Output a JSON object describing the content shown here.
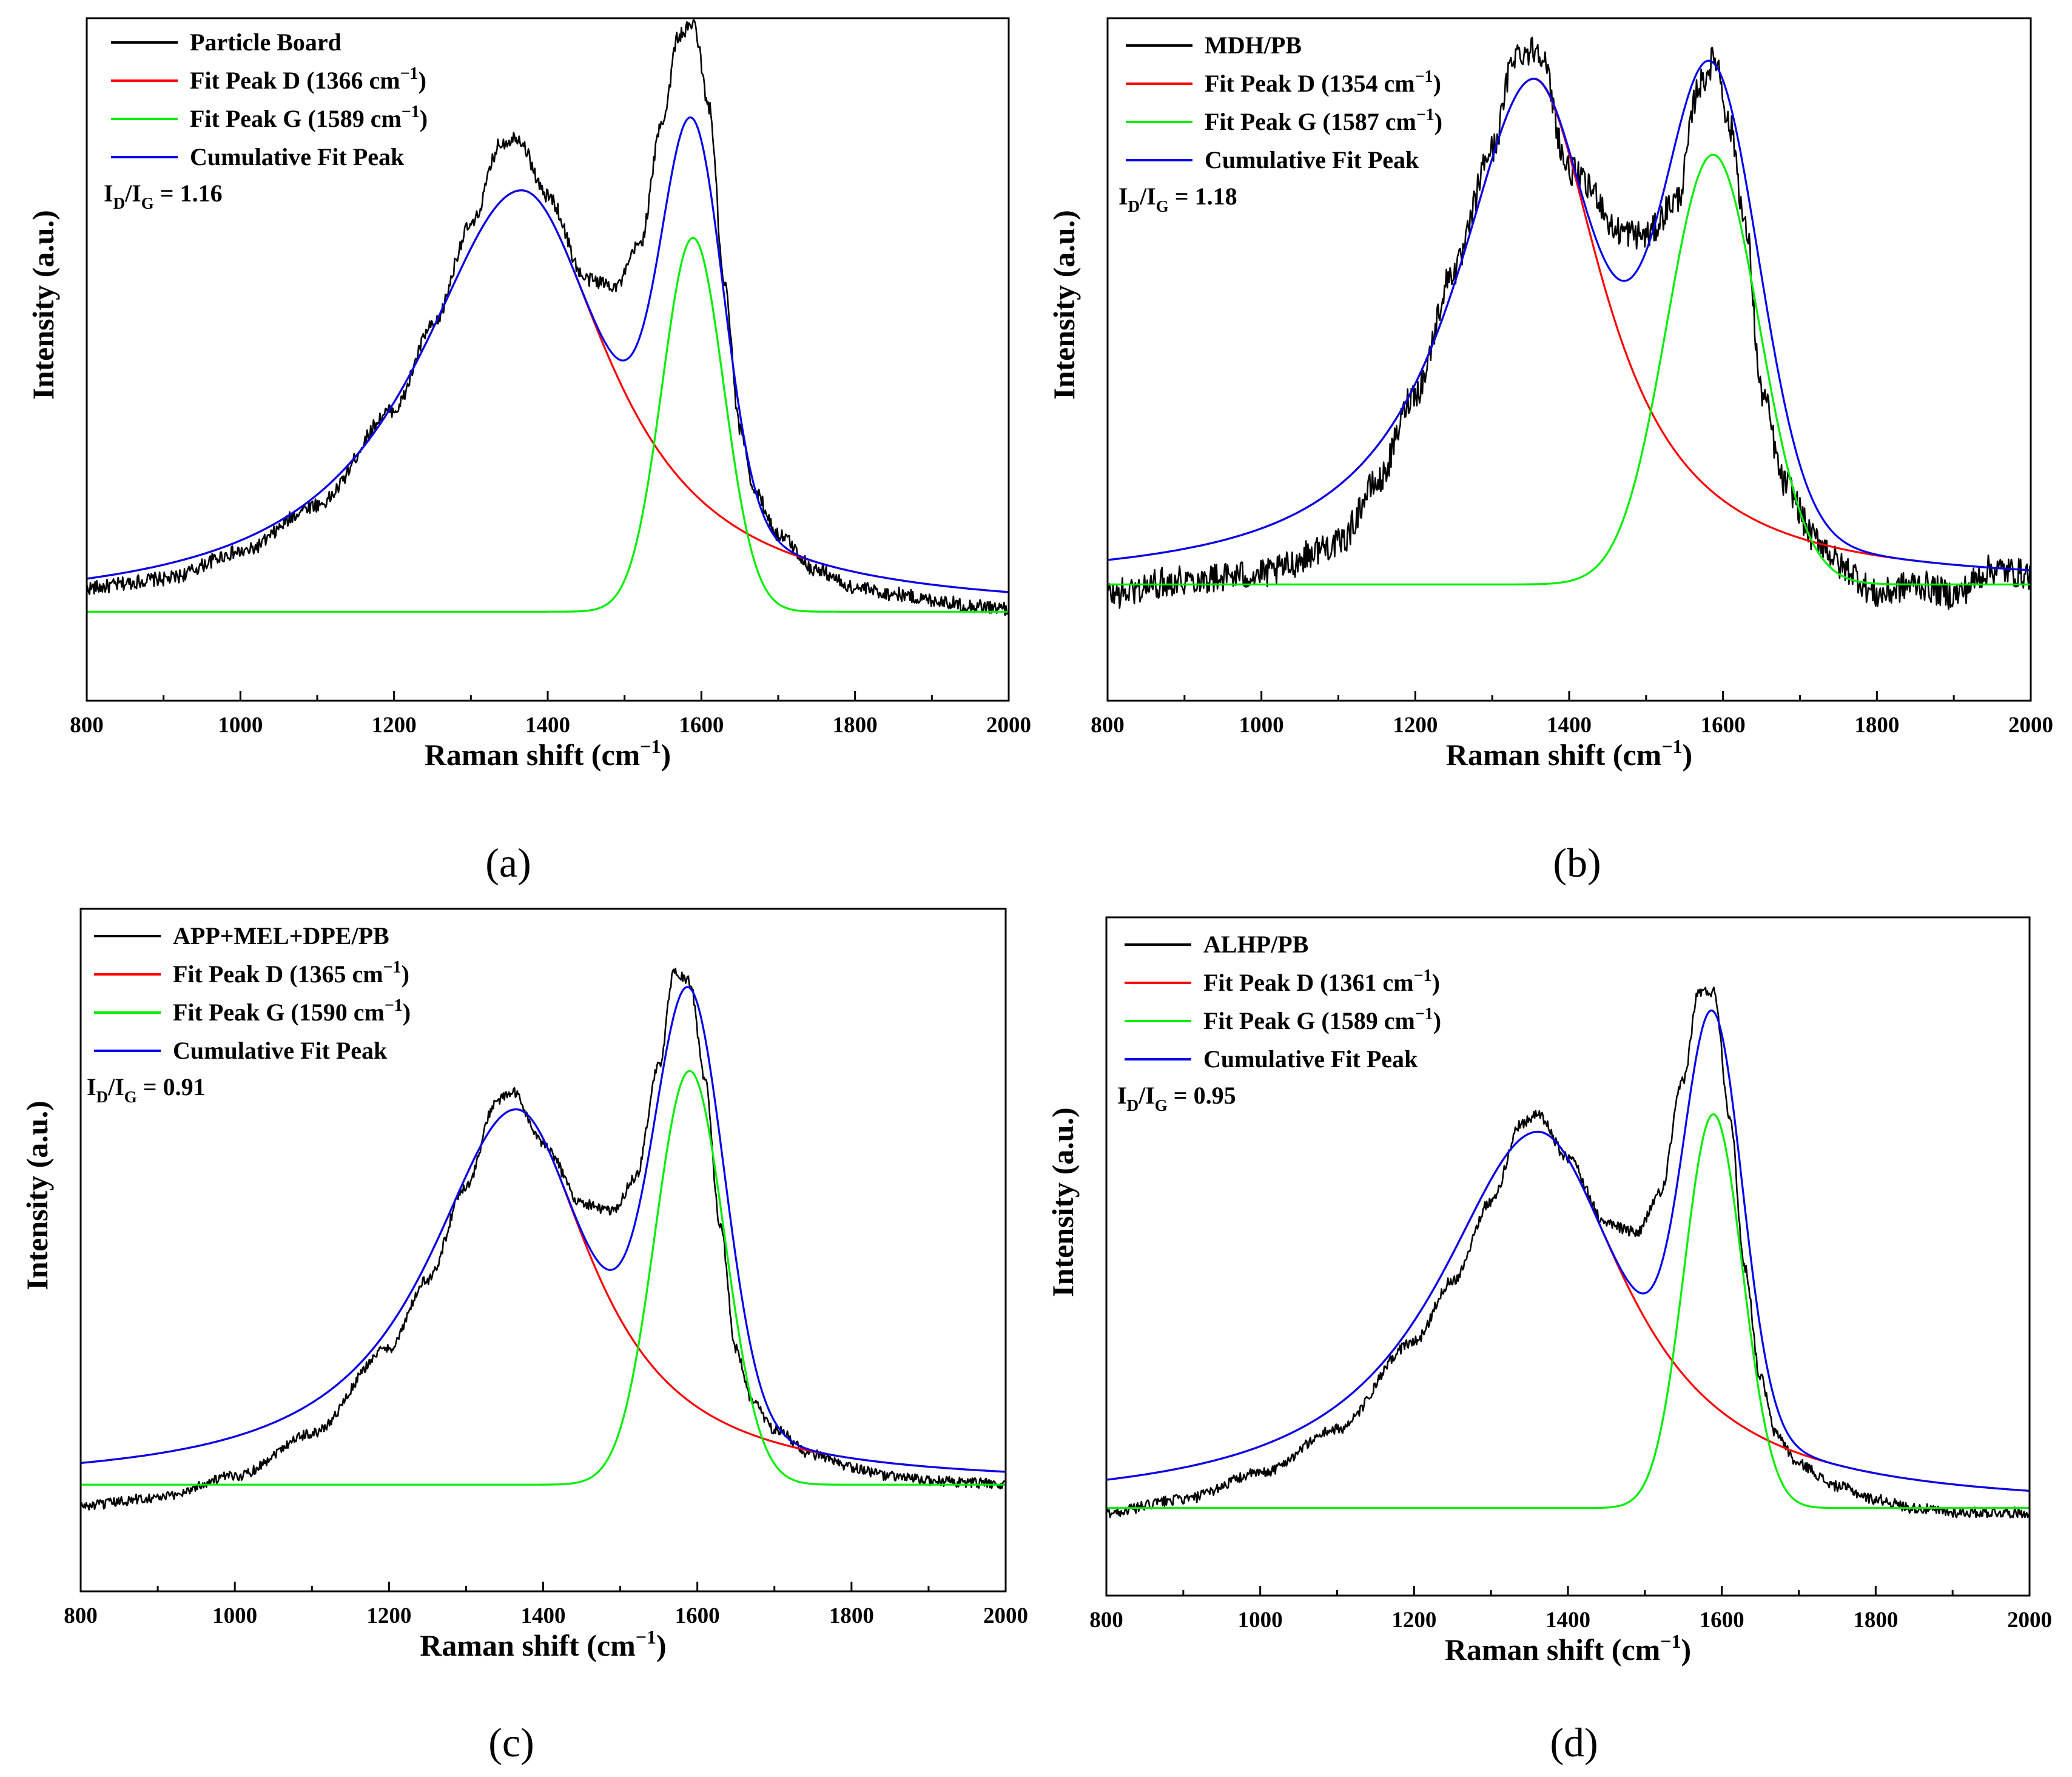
{
  "chart_data": [
    {
      "panel": "(a)",
      "type": "line",
      "sample": "Particle Board",
      "ratio": {
        "text": "I",
        "d": "D",
        "slash": "/I",
        "g": "G",
        "value": " = 1.16"
      },
      "xlabel": {
        "main": "Raman shift (cm",
        "sup": "−1",
        "close": ")"
      },
      "ylabel": "Intensity (a.u.)",
      "xlim": [
        800,
        2000
      ],
      "ylim": [
        -0.15,
        1.0
      ],
      "xticks": [
        "800",
        "1000",
        "1200",
        "1400",
        "1600",
        "1800",
        "2000"
      ],
      "legend": [
        {
          "key": "raw",
          "color": "#000000",
          "label": "Particle Board",
          "sup": ""
        },
        {
          "key": "d",
          "color": "#ff0000",
          "label": "Fit Peak D (1366 cm",
          "sup": "−1",
          "close": ")"
        },
        {
          "key": "g",
          "color": "#00ee00",
          "label": "Fit Peak G (1589 cm",
          "sup": "−1",
          "close": ")"
        },
        {
          "key": "cum",
          "color": "#0000ee",
          "label": "Cumulative Fit Peak",
          "sup": ""
        }
      ],
      "fit": {
        "d_center": 1366,
        "d_amp": 0.71,
        "d_wl": 165,
        "d_wr": 140,
        "g_center": 1589,
        "g_amp": 0.63,
        "g_w": 40
      },
      "raw": {
        "x": [
          800,
          900,
          1000,
          1100,
          1200,
          1250,
          1300,
          1340,
          1360,
          1400,
          1450,
          1490,
          1520,
          1550,
          1570,
          1590,
          1610,
          1630,
          1650,
          1670,
          1700,
          1750,
          1800,
          1850,
          1900,
          1950,
          2000
        ],
        "y": [
          0.04,
          0.055,
          0.1,
          0.18,
          0.34,
          0.48,
          0.65,
          0.79,
          0.8,
          0.7,
          0.56,
          0.55,
          0.62,
          0.83,
          0.97,
          0.99,
          0.85,
          0.55,
          0.31,
          0.2,
          0.13,
          0.07,
          0.04,
          0.03,
          0.02,
          0.01,
          0.005
        ]
      }
    },
    {
      "panel": "(b)",
      "type": "line",
      "sample": "MDH/PB",
      "ratio": {
        "text": "I",
        "d": "D",
        "slash": "/I",
        "g": "G",
        "value": " = 1.18"
      },
      "xlabel": {
        "main": "Raman shift (cm",
        "sup": "−1",
        "close": ")"
      },
      "ylabel": "Intensity (a.u.)",
      "xlim": [
        800,
        2000
      ],
      "ylim": [
        -0.23,
        1.12
      ],
      "xticks": [
        "800",
        "1000",
        "1200",
        "1400",
        "1600",
        "1800",
        "2000"
      ],
      "legend": [
        {
          "key": "raw",
          "color": "#000000",
          "label": "MDH/PB",
          "sup": ""
        },
        {
          "key": "d",
          "color": "#ff0000",
          "label": "Fit Peak D (1354 cm",
          "sup": "−1",
          "close": ")"
        },
        {
          "key": "g",
          "color": "#00ee00",
          "label": "Fit Peak G (1587 cm",
          "sup": "−1",
          "close": ")"
        },
        {
          "key": "cum",
          "color": "#0000ee",
          "label": "Cumulative Fit Peak",
          "sup": ""
        }
      ],
      "fit": {
        "d_center": 1354,
        "d_amp": 1.0,
        "d_wl": 125,
        "d_wr": 110,
        "g_center": 1587,
        "g_amp": 0.85,
        "g_w": 60
      },
      "raw": {
        "x": [
          800,
          900,
          1000,
          1100,
          1150,
          1200,
          1250,
          1300,
          1330,
          1360,
          1400,
          1430,
          1460,
          1500,
          1540,
          1570,
          1590,
          1610,
          1630,
          1650,
          1680,
          1720,
          1760,
          1800,
          1850,
          1900,
          1950,
          2000
        ],
        "y": [
          -0.02,
          0.01,
          0.02,
          0.08,
          0.2,
          0.38,
          0.62,
          0.86,
          1.05,
          1.06,
          0.82,
          0.78,
          0.7,
          0.69,
          0.76,
          0.99,
          1.04,
          0.9,
          0.7,
          0.38,
          0.2,
          0.09,
          0.03,
          -0.02,
          0.0,
          -0.02,
          0.03,
          0.02
        ]
      }
    },
    {
      "panel": "(c)",
      "type": "line",
      "sample": "APP+MEL+DPE/PB",
      "ratio": {
        "text": "I",
        "d": "D",
        "slash": "/I",
        "g": "G",
        "value": " = 0.91"
      },
      "xlabel": {
        "main": "Raman shift (cm",
        "sup": "−1",
        "close": ")"
      },
      "ylabel": "Intensity (a.u.)",
      "xlim": [
        800,
        2000
      ],
      "ylim": [
        -0.25,
        1.35
      ],
      "xticks": [
        "800",
        "1000",
        "1200",
        "1400",
        "1600",
        "1800",
        "2000"
      ],
      "legend": [
        {
          "key": "raw",
          "color": "#000000",
          "label": "APP+MEL+DPE/PB",
          "sup": ""
        },
        {
          "key": "d",
          "color": "#ff0000",
          "label": "Fit Peak D (1365 cm",
          "sup": "−1",
          "close": ")"
        },
        {
          "key": "g",
          "color": "#00ee00",
          "label": "Fit Peak G (1590 cm",
          "sup": "−1",
          "close": ")"
        },
        {
          "key": "cum",
          "color": "#0000ee",
          "label": "Cumulative Fit Peak",
          "sup": ""
        }
      ],
      "fit": {
        "d_center": 1365,
        "d_amp": 0.88,
        "d_wl": 140,
        "d_wr": 120,
        "g_center": 1590,
        "g_amp": 0.97,
        "g_w": 45
      },
      "raw": {
        "x": [
          800,
          900,
          1000,
          1100,
          1200,
          1250,
          1300,
          1340,
          1360,
          1400,
          1450,
          1490,
          1520,
          1550,
          1570,
          1590,
          1610,
          1630,
          1650,
          1670,
          1700,
          1750,
          1800,
          1850,
          1900,
          1950,
          2000
        ],
        "y": [
          -0.05,
          -0.03,
          0.02,
          0.12,
          0.32,
          0.48,
          0.7,
          0.9,
          0.92,
          0.8,
          0.66,
          0.64,
          0.72,
          0.98,
          1.2,
          1.18,
          0.95,
          0.6,
          0.32,
          0.2,
          0.13,
          0.07,
          0.04,
          0.02,
          0.01,
          0.005,
          0.0
        ]
      }
    },
    {
      "panel": "(d)",
      "type": "line",
      "sample": "ALHP/PB",
      "ratio": {
        "text": "I",
        "d": "D",
        "slash": "/I",
        "g": "G",
        "value": " = 0.95"
      },
      "xlabel": {
        "main": "Raman shift (cm",
        "sup": "−1",
        "close": ")"
      },
      "ylabel": "Intensity (a.u.)",
      "xlim": [
        800,
        2000
      ],
      "ylim": [
        -0.2,
        1.35
      ],
      "xticks": [
        "800",
        "1000",
        "1200",
        "1400",
        "1600",
        "1800",
        "2000"
      ],
      "legend": [
        {
          "key": "raw",
          "color": "#000000",
          "label": "ALHP/PB",
          "sup": ""
        },
        {
          "key": "d",
          "color": "#ff0000",
          "label": "Fit Peak D (1361 cm",
          "sup": "−1",
          "close": ")"
        },
        {
          "key": "g",
          "color": "#00ee00",
          "label": "Fit Peak G (1589 cm",
          "sup": "−1",
          "close": ")"
        },
        {
          "key": "cum",
          "color": "#0000ee",
          "label": "Cumulative Fit Peak",
          "sup": ""
        }
      ],
      "fit": {
        "d_center": 1361,
        "d_amp": 0.86,
        "d_wl": 160,
        "d_wr": 140,
        "g_center": 1589,
        "g_amp": 0.9,
        "g_w": 38
      },
      "raw": {
        "x": [
          800,
          900,
          1000,
          1100,
          1200,
          1250,
          1300,
          1340,
          1360,
          1400,
          1450,
          1490,
          1520,
          1550,
          1570,
          1590,
          1610,
          1630,
          1650,
          1670,
          1700,
          1750,
          1800,
          1850,
          1900,
          1950,
          2000
        ],
        "y": [
          -0.01,
          0.02,
          0.08,
          0.18,
          0.38,
          0.52,
          0.7,
          0.88,
          0.9,
          0.8,
          0.65,
          0.63,
          0.72,
          0.98,
          1.18,
          1.18,
          0.9,
          0.55,
          0.3,
          0.17,
          0.1,
          0.05,
          0.02,
          0.0,
          -0.01,
          -0.01,
          -0.01
        ]
      }
    }
  ]
}
